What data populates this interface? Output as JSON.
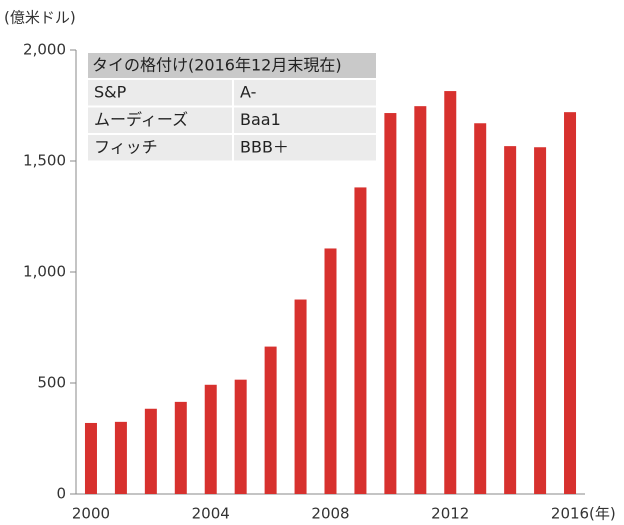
{
  "chart_data": {
    "type": "bar",
    "y_axis_label": "(億米ドル)",
    "x_axis_label": "(年)",
    "categories": [
      "2000",
      null,
      null,
      null,
      "2004",
      null,
      null,
      null,
      "2008",
      null,
      null,
      null,
      "2012",
      null,
      null,
      null,
      "2016"
    ],
    "values": [
      320,
      325,
      384,
      415,
      492,
      515,
      664,
      876,
      1106,
      1381,
      1716,
      1747,
      1815,
      1670,
      1567,
      1562,
      1720
    ],
    "color": "#d7312e",
    "ylim": [
      0,
      2000
    ],
    "yticks": [
      0,
      500,
      {
        "value": 1000,
        "label": "1,000"
      },
      {
        "value": 1500,
        "label": "1,500"
      },
      {
        "value": 2000,
        "label": "2,000"
      }
    ],
    "grid": false
  },
  "table": {
    "title": "タイの格付け(2016年12月末現在)",
    "rows": [
      [
        "S&P",
        "A-"
      ],
      [
        "ムーディーズ",
        "Baa1"
      ],
      [
        "フィッチ",
        "BBB＋"
      ]
    ]
  }
}
